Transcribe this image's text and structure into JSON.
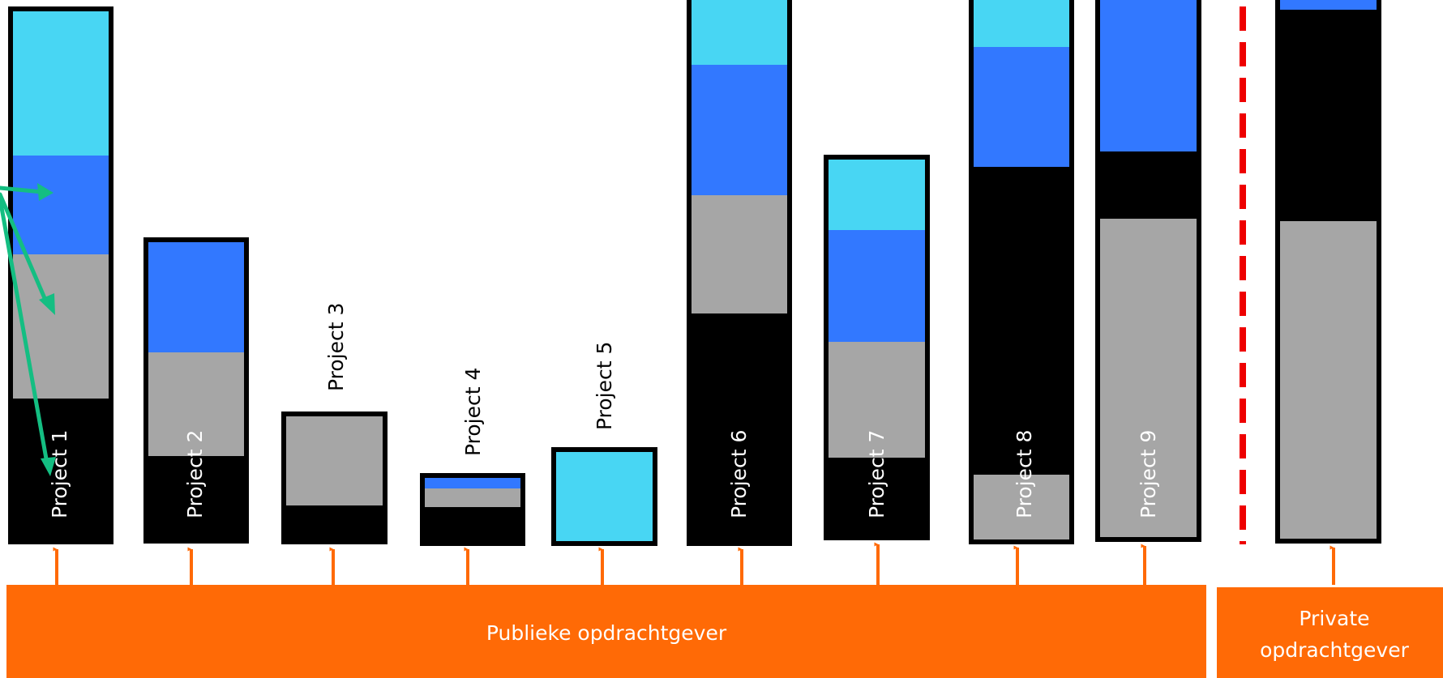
{
  "colors": {
    "light_blue": "#48D6F3",
    "blue": "#3278FF",
    "gray": "#A6A6A6",
    "black": "#000000",
    "orange": "#FF6A06",
    "green_arrow": "#14BE82",
    "divider_red": "#EE0000"
  },
  "projects": [
    {
      "label": "Project 1",
      "label_color": "white"
    },
    {
      "label": "Project 2",
      "label_color": "white"
    },
    {
      "label": "Project 3",
      "label_color": "black"
    },
    {
      "label": "Project 4",
      "label_color": "black"
    },
    {
      "label": "Project 5",
      "label_color": "black"
    },
    {
      "label": "Project 6",
      "label_color": "white"
    },
    {
      "label": "Project 7",
      "label_color": "white"
    },
    {
      "label": "Project 8",
      "label_color": "white"
    },
    {
      "label": "Project 9",
      "label_color": "white"
    }
  ],
  "groups": {
    "public": {
      "label": "Publieke opdrachtgever"
    },
    "private": {
      "label_line1": "Private",
      "label_line2": "opdrachtgever"
    }
  }
}
